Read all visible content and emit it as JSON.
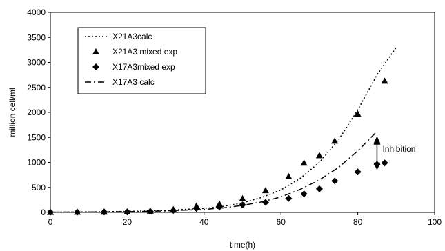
{
  "chart_data": {
    "type": "line",
    "title": "",
    "xlabel": "time(h)",
    "ylabel": "million cell/ml",
    "xlim": [
      0,
      100
    ],
    "ylim": [
      0,
      4000
    ],
    "xticks": [
      0,
      20,
      40,
      60,
      80,
      100
    ],
    "yticks": [
      0,
      500,
      1000,
      1500,
      2000,
      2500,
      3000,
      3500,
      4000
    ],
    "grid": false,
    "legend_position": "top-left",
    "series": [
      {
        "name": "X21A3calc",
        "kind": "line",
        "style": "dotted",
        "color": "#000000",
        "x": [
          0,
          10,
          20,
          30,
          40,
          45,
          50,
          55,
          60,
          65,
          70,
          75,
          80,
          85,
          90
        ],
        "y": [
          5,
          10,
          20,
          40,
          80,
          120,
          190,
          300,
          450,
          680,
          1000,
          1450,
          2050,
          2750,
          3300
        ]
      },
      {
        "name": "X21A3 mixed exp",
        "kind": "scatter",
        "marker": "triangle",
        "color": "#000000",
        "x": [
          0,
          7,
          14,
          20,
          26,
          32,
          38,
          44,
          50,
          56,
          62,
          66,
          70,
          74,
          80,
          85,
          87
        ],
        "y": [
          5,
          8,
          10,
          15,
          30,
          60,
          130,
          170,
          280,
          440,
          720,
          990,
          1140,
          1430,
          1970,
          1410,
          2630
        ]
      },
      {
        "name": "X17A3mixed exp",
        "kind": "scatter",
        "marker": "diamond",
        "color": "#000000",
        "x": [
          0,
          7,
          14,
          20,
          26,
          32,
          38,
          44,
          50,
          56,
          62,
          66,
          70,
          74,
          80,
          85,
          87
        ],
        "y": [
          5,
          5,
          8,
          10,
          20,
          40,
          80,
          110,
          150,
          200,
          280,
          370,
          470,
          630,
          810,
          960,
          990
        ]
      },
      {
        "name": "X17A3 calc",
        "kind": "line",
        "style": "dashdot",
        "color": "#000000",
        "x": [
          0,
          10,
          20,
          30,
          40,
          45,
          50,
          55,
          60,
          65,
          70,
          75,
          80,
          85
        ],
        "y": [
          5,
          8,
          15,
          30,
          60,
          90,
          140,
          210,
          310,
          460,
          650,
          900,
          1230,
          1620
        ]
      }
    ],
    "annotations": [
      {
        "text": "Inhibition",
        "arrow_x": 85,
        "arrow_y_from": 1500,
        "arrow_y_to": 870
      }
    ]
  }
}
